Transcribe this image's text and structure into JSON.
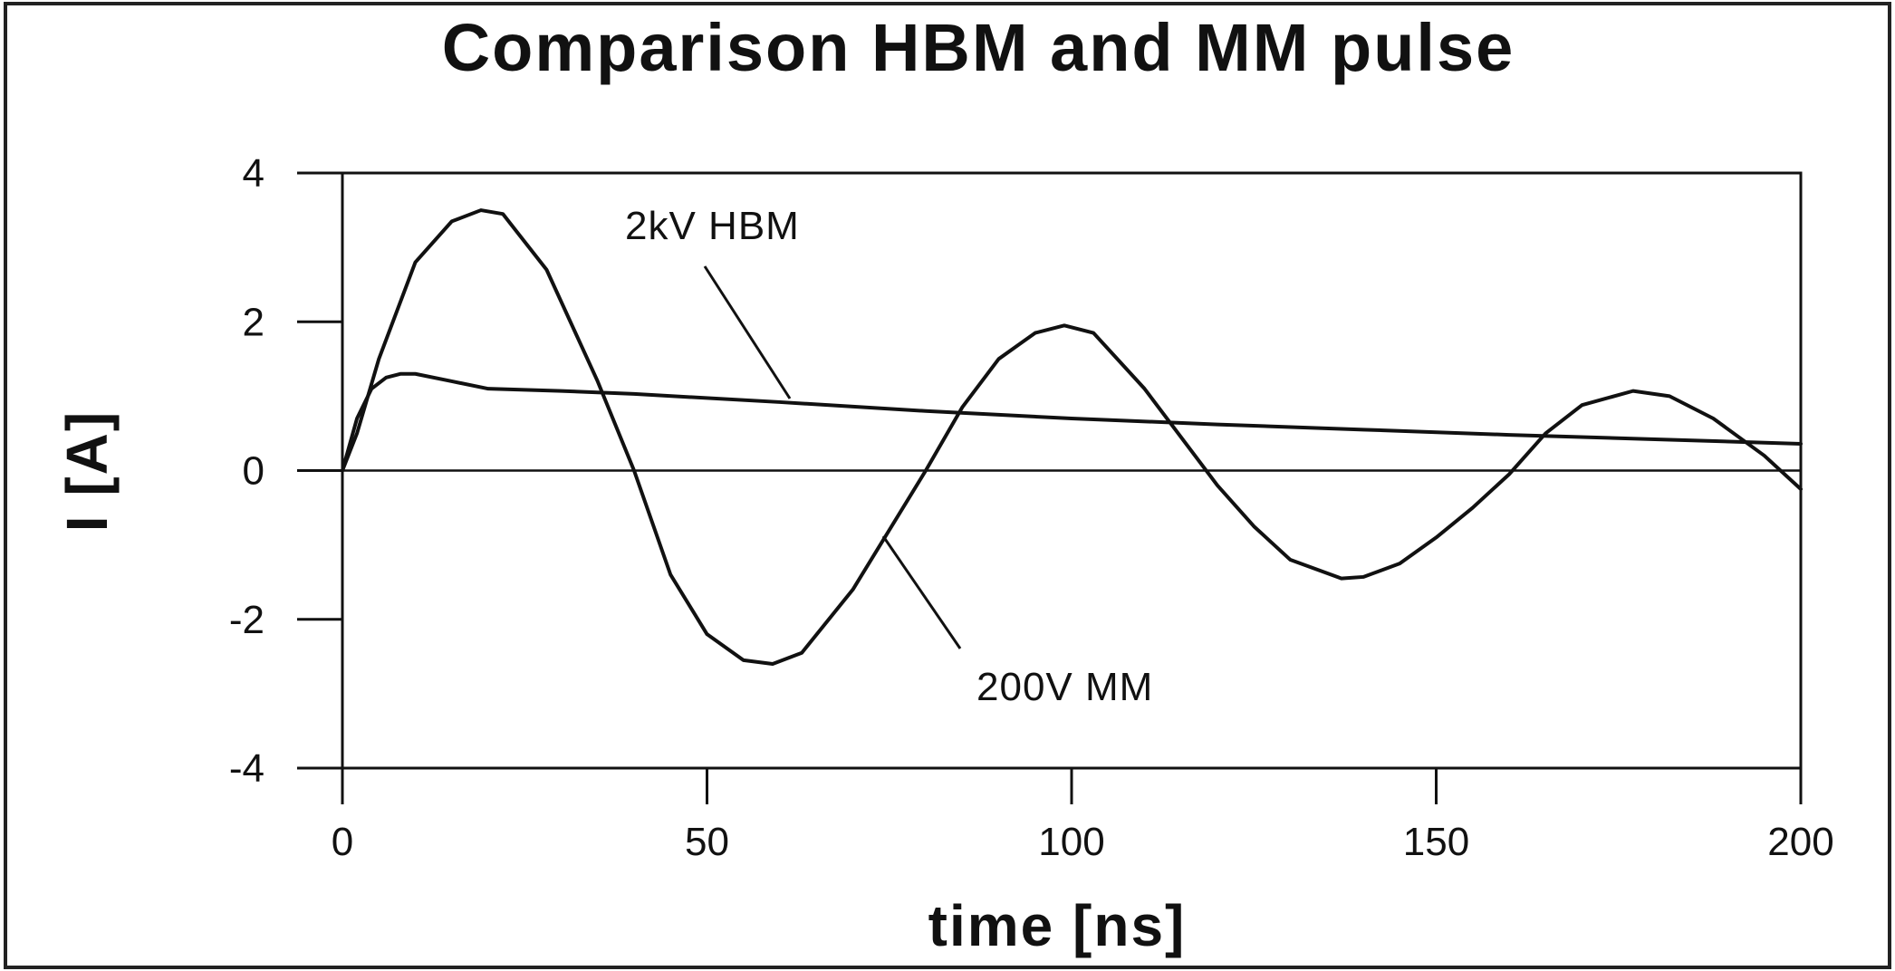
{
  "chart_data": {
    "type": "line",
    "title": "Comparison HBM and MM pulse",
    "xlabel": "time [ns]",
    "ylabel": "I [A]",
    "xlim": [
      0,
      200
    ],
    "ylim": [
      -4,
      4
    ],
    "x_ticks": [
      0,
      50,
      100,
      150,
      200
    ],
    "y_ticks": [
      -4,
      -2,
      0,
      2,
      4
    ],
    "x_tick_labels": [
      "0",
      "50",
      "100",
      "150",
      "200"
    ],
    "y_tick_labels": [
      "-4",
      "-2",
      "0",
      "2",
      "4"
    ],
    "grid": false,
    "series": [
      {
        "name": "2kV HBM",
        "x": [
          0,
          2,
          4,
          6,
          8,
          10,
          15,
          20,
          30,
          40,
          60,
          80,
          100,
          120,
          140,
          160,
          180,
          200
        ],
        "values": [
          0,
          0.7,
          1.1,
          1.25,
          1.3,
          1.3,
          1.2,
          1.1,
          1.07,
          1.03,
          0.92,
          0.8,
          0.7,
          0.62,
          0.55,
          0.48,
          0.42,
          0.36
        ]
      },
      {
        "name": "200V MM",
        "x": [
          0,
          2,
          5,
          10,
          15,
          19,
          22,
          28,
          35,
          40,
          45,
          50,
          55,
          59,
          63,
          70,
          80,
          85,
          90,
          95,
          99,
          103,
          110,
          120,
          125,
          130,
          137,
          140,
          145,
          150,
          155,
          160,
          165,
          170,
          177,
          182,
          188,
          195,
          200
        ],
        "values": [
          0,
          0.5,
          1.5,
          2.8,
          3.35,
          3.5,
          3.45,
          2.7,
          1.2,
          0.0,
          -1.4,
          -2.2,
          -2.55,
          -2.6,
          -2.45,
          -1.6,
          0.0,
          0.85,
          1.5,
          1.85,
          1.95,
          1.85,
          1.1,
          -0.2,
          -0.75,
          -1.2,
          -1.45,
          -1.43,
          -1.25,
          -0.9,
          -0.5,
          -0.05,
          0.5,
          0.88,
          1.07,
          1.0,
          0.7,
          0.2,
          -0.25
        ]
      }
    ]
  }
}
